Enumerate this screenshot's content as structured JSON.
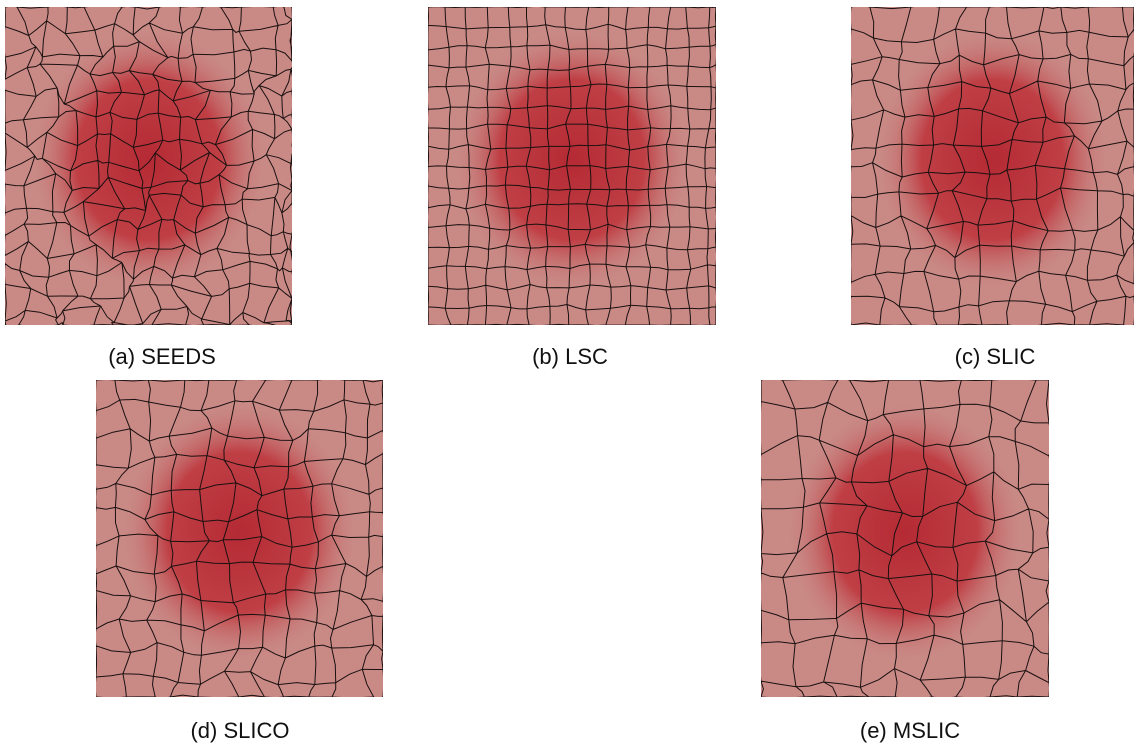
{
  "figures": [
    {
      "caption": "(a) SEEDS"
    },
    {
      "caption": "(b) LSC"
    },
    {
      "caption": "(c) SLIC"
    },
    {
      "caption": "(d) SLICO"
    },
    {
      "caption": "(e) MSLIC"
    }
  ]
}
